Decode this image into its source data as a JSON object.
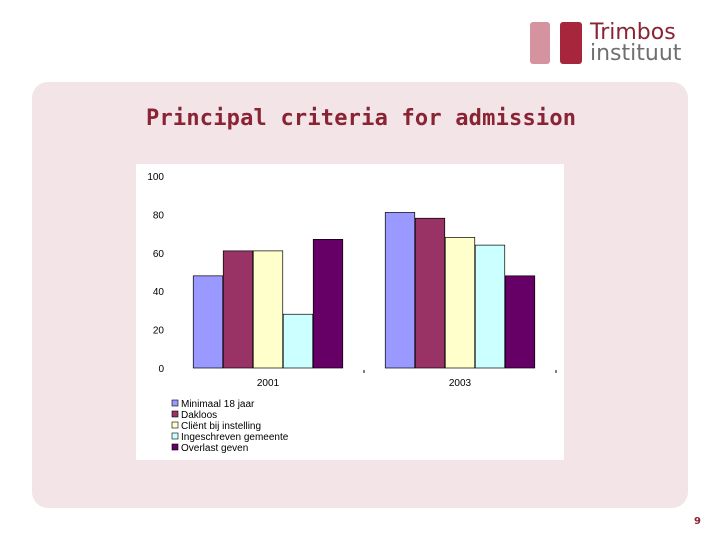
{
  "logo": {
    "line1": "Trimbos",
    "line2": "instituut"
  },
  "slide": {
    "title": "Principal criteria for admission",
    "page_number": "9"
  },
  "colors": {
    "brand": "#8a2334",
    "panel": "#f2e4e7"
  },
  "chart_data": {
    "type": "bar",
    "title": "",
    "xlabel": "",
    "ylabel": "",
    "ylim": [
      0,
      100
    ],
    "yticks": [
      0,
      20,
      40,
      60,
      80,
      100
    ],
    "grid": false,
    "legend_position": "bottom-left",
    "categories": [
      "2001",
      "2003"
    ],
    "series": [
      {
        "name": "Minimaal 18 jaar",
        "color": "#9999ff",
        "values": [
          48,
          81
        ]
      },
      {
        "name": "Dakloos",
        "color": "#993366",
        "values": [
          61,
          78
        ]
      },
      {
        "name": "Cliënt bij instelling",
        "color": "#ffffcc",
        "values": [
          61,
          68
        ]
      },
      {
        "name": "Ingeschreven gemeente",
        "color": "#ccffff",
        "values": [
          28,
          64
        ]
      },
      {
        "name": "Overlast geven",
        "color": "#660066",
        "values": [
          67,
          48
        ]
      }
    ]
  }
}
